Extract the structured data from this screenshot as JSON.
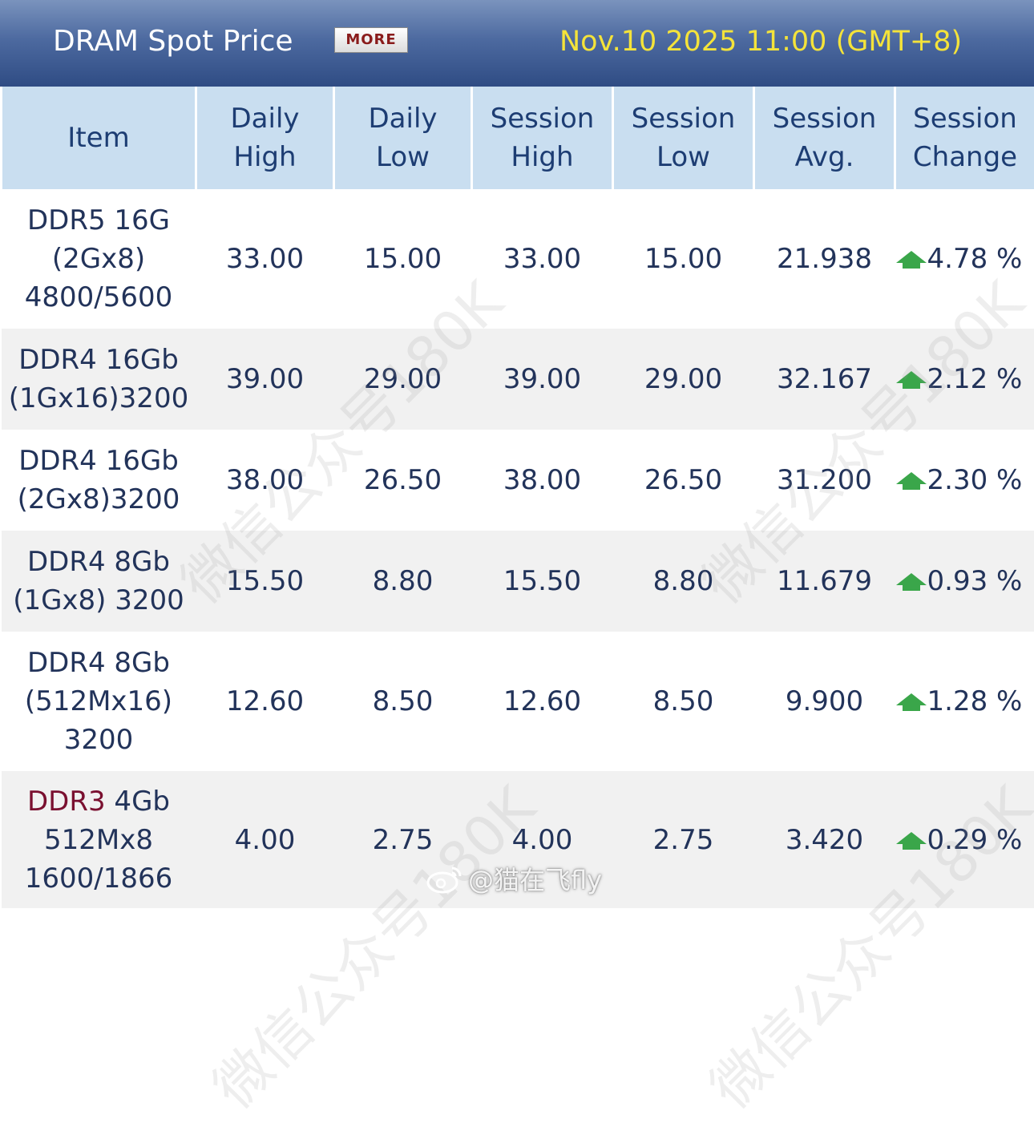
{
  "header": {
    "title": "DRAM Spot Price",
    "more_label": "MORE",
    "timestamp": "Nov.10 2025 11:00 (GMT+8)"
  },
  "columns": [
    {
      "l1": "Item",
      "l2": ""
    },
    {
      "l1": "Daily",
      "l2": "High"
    },
    {
      "l1": "Daily",
      "l2": "Low"
    },
    {
      "l1": "Session",
      "l2": "High"
    },
    {
      "l1": "Session",
      "l2": "Low"
    },
    {
      "l1": "Session",
      "l2": "Avg."
    },
    {
      "l1": "Session",
      "l2": "Change"
    }
  ],
  "rows": [
    {
      "item": [
        "DDR5 16G",
        "(2Gx8)",
        "4800/5600"
      ],
      "daily_high": "33.00",
      "daily_low": "15.00",
      "session_high": "33.00",
      "session_low": "15.00",
      "session_avg": "21.938",
      "session_change": "4.78 %"
    },
    {
      "item": [
        "DDR4 16Gb",
        "(1Gx16)3200"
      ],
      "daily_high": "39.00",
      "daily_low": "29.00",
      "session_high": "39.00",
      "session_low": "29.00",
      "session_avg": "32.167",
      "session_change": "2.12 %"
    },
    {
      "item": [
        "DDR4 16Gb",
        "(2Gx8)3200"
      ],
      "daily_high": "38.00",
      "daily_low": "26.50",
      "session_high": "38.00",
      "session_low": "26.50",
      "session_avg": "31.200",
      "session_change": "2.30 %"
    },
    {
      "item": [
        "DDR4 8Gb",
        "(1Gx8) 3200"
      ],
      "daily_high": "15.50",
      "daily_low": "8.80",
      "session_high": "15.50",
      "session_low": "8.80",
      "session_avg": "11.679",
      "session_change": "0.93 %"
    },
    {
      "item": [
        "DDR4 8Gb",
        "(512Mx16)",
        "3200"
      ],
      "daily_high": "12.60",
      "daily_low": "8.50",
      "session_high": "12.60",
      "session_low": "8.50",
      "session_avg": "9.900",
      "session_change": "1.28 %"
    },
    {
      "item_ddr3_prefix": "DDR3",
      "item_ddr3_rest": " 4Gb",
      "item": [
        "",
        "512Mx8",
        "1600/1866"
      ],
      "daily_high": "4.00",
      "daily_low": "2.75",
      "session_high": "4.00",
      "session_low": "2.75",
      "session_avg": "3.420",
      "session_change": "0.29 %"
    }
  ],
  "icons": {
    "trend": "up-arrow-icon",
    "trend_color": "#3aa64a"
  },
  "watermarks": [
    "微信公众号180K",
    "微信公众号180K",
    "微信公众号180K",
    "微信公众号180K"
  ],
  "weibo_credit": "@猫在飞fly"
}
